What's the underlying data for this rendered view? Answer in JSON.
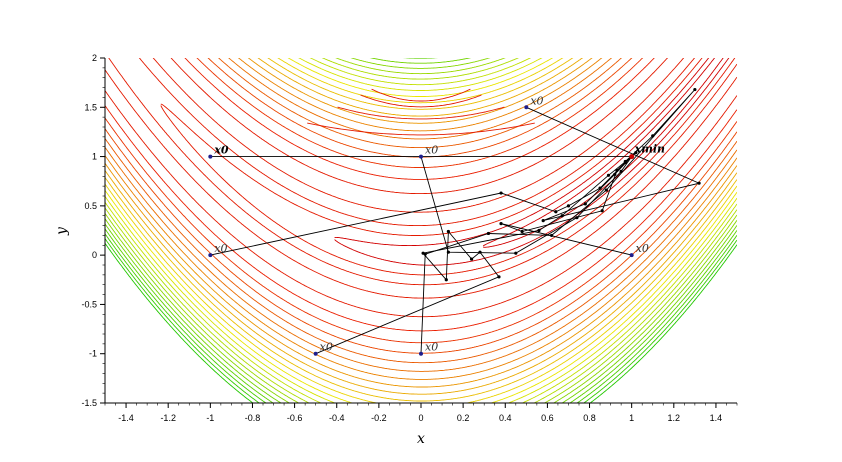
{
  "chart_data": {
    "type": "line",
    "title": "",
    "xlabel": "x",
    "ylabel": "y",
    "xlim": [
      -1.5,
      1.5
    ],
    "ylim": [
      -1.5,
      2
    ],
    "xticks": [
      "-1.4",
      "-1.2",
      "-1",
      "-0.8",
      "-0.6",
      "-0.4",
      "-0.2",
      "0",
      "0.2",
      "0.4",
      "0.6",
      "0.8",
      "1",
      "1.2",
      "1.4"
    ],
    "yticks": [
      "-1.5",
      "-1",
      "-0.5",
      "0",
      "0.5",
      "1",
      "1.5",
      "2"
    ],
    "contours": {
      "function": "rosenbrock",
      "red_levels": [
        0.5,
        2,
        5,
        10,
        20,
        40
      ],
      "gradient_levels": [
        60,
        80,
        100,
        120,
        140,
        160,
        180,
        200,
        220,
        240,
        260,
        280,
        300,
        320,
        340,
        360,
        380,
        400,
        420,
        440,
        460
      ],
      "upper_arcs": [
        0.09,
        0.42,
        1.1,
        2.0
      ]
    },
    "start_points": [
      {
        "x": -1,
        "y": 1,
        "label": "x0",
        "bold": true
      },
      {
        "x": 0,
        "y": 1,
        "label": "x0",
        "bold": false
      },
      {
        "x": 0.5,
        "y": 1.5,
        "label": "x0",
        "bold": false
      },
      {
        "x": -1,
        "y": 0,
        "label": "x0",
        "bold": false
      },
      {
        "x": 1,
        "y": 0,
        "label": "x0",
        "bold": false
      },
      {
        "x": -0.5,
        "y": -1,
        "label": "x0",
        "bold": false
      },
      {
        "x": 0,
        "y": -1,
        "label": "x0",
        "bold": false
      }
    ],
    "minimum": {
      "x": 1,
      "y": 1,
      "label": "xmin"
    },
    "series": [
      {
        "points": [
          [
            -1,
            1
          ],
          [
            1,
            1
          ],
          [
            1.02,
            1.04
          ],
          [
            1,
            1
          ]
        ]
      },
      {
        "points": [
          [
            0,
            1
          ],
          [
            0.13,
            0.03
          ],
          [
            0.45,
            0.02
          ],
          [
            0.74,
            0.38
          ],
          [
            0.95,
            0.85
          ],
          [
            1,
            1
          ]
        ]
      },
      {
        "points": [
          [
            0.5,
            1.5
          ],
          [
            1.32,
            0.73
          ],
          [
            0.58,
            0.35
          ],
          [
            0.78,
            0.52
          ],
          [
            0.92,
            0.82
          ],
          [
            1,
            1
          ]
        ]
      },
      {
        "points": [
          [
            -1,
            0
          ],
          [
            0.38,
            0.63
          ],
          [
            0.64,
            0.44
          ],
          [
            0.7,
            0.5
          ],
          [
            0.85,
            0.68
          ],
          [
            0.97,
            0.94
          ],
          [
            1,
            1
          ]
        ]
      },
      {
        "points": [
          [
            1,
            0
          ],
          [
            0.38,
            0.32
          ],
          [
            0.48,
            0.24
          ],
          [
            0.86,
            0.45
          ],
          [
            0.93,
            0.86
          ],
          [
            1,
            1
          ]
        ]
      },
      {
        "points": [
          [
            -0.5,
            -1
          ],
          [
            0.37,
            -0.22
          ],
          [
            0.28,
            0.03
          ],
          [
            0.24,
            -0.04
          ],
          [
            0.13,
            0.24
          ],
          [
            0.12,
            -0.25
          ],
          [
            0.01,
            0.02
          ],
          [
            0.56,
            0.25
          ],
          [
            0.67,
            0.4
          ],
          [
            0.89,
            0.81
          ],
          [
            1,
            1
          ]
        ]
      },
      {
        "points": [
          [
            0,
            -1
          ],
          [
            0.02,
            0.01
          ],
          [
            0.32,
            0.22
          ],
          [
            0.62,
            0.2
          ],
          [
            0.88,
            0.66
          ],
          [
            1.3,
            1.68
          ],
          [
            1.1,
            1.21
          ],
          [
            0.97,
            0.95
          ],
          [
            1,
            1
          ]
        ]
      }
    ]
  }
}
